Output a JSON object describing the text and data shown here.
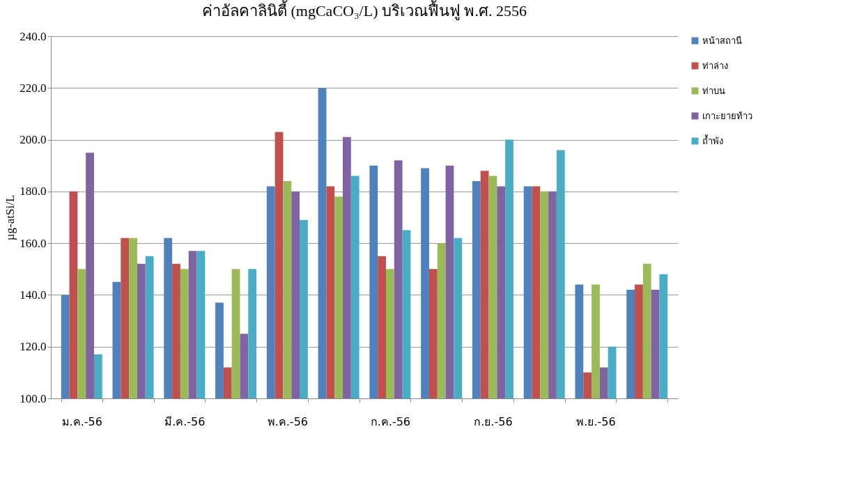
{
  "chart_data": {
    "type": "bar",
    "title": "ค่าอัลคาลินิตี้ (mgCaCO₃/L) บริเวณฟื้นฟู พ.ศ. 2556",
    "ylabel": "µg-atSi/L",
    "categories": [
      "ม.ค.-56",
      null,
      "มี.ค.-56",
      null,
      "พ.ค.-56",
      null,
      "ก.ค.-56",
      null,
      "ก.ย.-56",
      null,
      "พ.ย.-56",
      null
    ],
    "series": [
      {
        "name": "หน้าสถานี",
        "color": "#4f81bd",
        "values": [
          140,
          145,
          162,
          137,
          182,
          220,
          190,
          189,
          184,
          182,
          144,
          142
        ]
      },
      {
        "name": "ท่าล่าง",
        "color": "#c0504d",
        "values": [
          180,
          162,
          152,
          112,
          203,
          182,
          155,
          150,
          188,
          182,
          110,
          144
        ]
      },
      {
        "name": "ท่าบน",
        "color": "#9bbb59",
        "values": [
          150,
          162,
          150,
          150,
          184,
          178,
          150,
          160,
          186,
          180,
          144,
          152
        ]
      },
      {
        "name": "เกาะยายท้าว",
        "color": "#8064a2",
        "values": [
          195,
          152,
          157,
          125,
          180,
          201,
          192,
          190,
          182,
          180,
          112,
          142
        ]
      },
      {
        "name": "ถ้ำพัง",
        "color": "#4bacc6",
        "values": [
          117,
          155,
          157,
          150,
          169,
          186,
          165,
          162,
          200,
          196,
          120,
          148
        ]
      }
    ],
    "ylim": [
      100,
      240
    ],
    "yticks": [
      {
        "value": 100,
        "label": "100.0"
      },
      {
        "value": 120,
        "label": "120.0"
      },
      {
        "value": 140,
        "label": "140.0"
      },
      {
        "value": 160,
        "label": "160.0"
      },
      {
        "value": 180,
        "label": "180.0"
      },
      {
        "value": 200,
        "label": "200.0"
      },
      {
        "value": 220,
        "label": "220.0"
      },
      {
        "value": 240,
        "label": "240.0"
      }
    ],
    "grid": "y",
    "legend": "right"
  }
}
